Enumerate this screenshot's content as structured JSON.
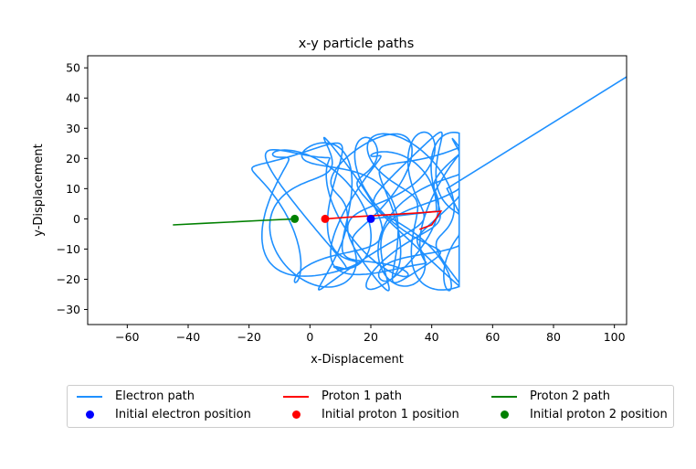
{
  "chart_data": {
    "type": "line",
    "title": "x-y particle paths",
    "xlabel": "x-Displacement",
    "ylabel": "y-Displacement",
    "xlim": [
      -73,
      104
    ],
    "ylim": [
      -35,
      54
    ],
    "xticks": [
      -60,
      -40,
      -20,
      0,
      20,
      40,
      60,
      80,
      100
    ],
    "yticks": [
      -30,
      -20,
      -10,
      0,
      10,
      20,
      30,
      40,
      50
    ],
    "grid": false,
    "legend_position": "below",
    "series": [
      {
        "name": "Electron path",
        "color": "#1e90ff",
        "kind": "orbit",
        "orbit": {
          "loop_count": 14,
          "x_range": [
            -22,
            49
          ],
          "y_range": [
            -24,
            29
          ],
          "start": [
            20,
            0
          ],
          "escape_to": [
            104,
            47
          ]
        }
      },
      {
        "name": "Proton 1 path",
        "color": "#ff0000",
        "x": [
          5,
          12,
          20,
          28,
          36,
          43,
          40,
          36
        ],
        "y": [
          0,
          0.5,
          1,
          1.5,
          2,
          2.5,
          -2,
          -3.5
        ]
      },
      {
        "name": "Proton 2 path",
        "color": "#008000",
        "x": [
          -5,
          -15,
          -25,
          -35,
          -45
        ],
        "y": [
          0,
          -0.5,
          -1,
          -1.5,
          -2
        ]
      },
      {
        "name": "Initial electron position",
        "color": "#0000ff",
        "marker": "o",
        "x": [
          20
        ],
        "y": [
          0
        ]
      },
      {
        "name": "Initial proton 1 position",
        "color": "#ff0000",
        "marker": "o",
        "x": [
          5
        ],
        "y": [
          0
        ]
      },
      {
        "name": "Initial proton 2 position",
        "color": "#008000",
        "marker": "o",
        "x": [
          -5
        ],
        "y": [
          0
        ]
      }
    ]
  }
}
